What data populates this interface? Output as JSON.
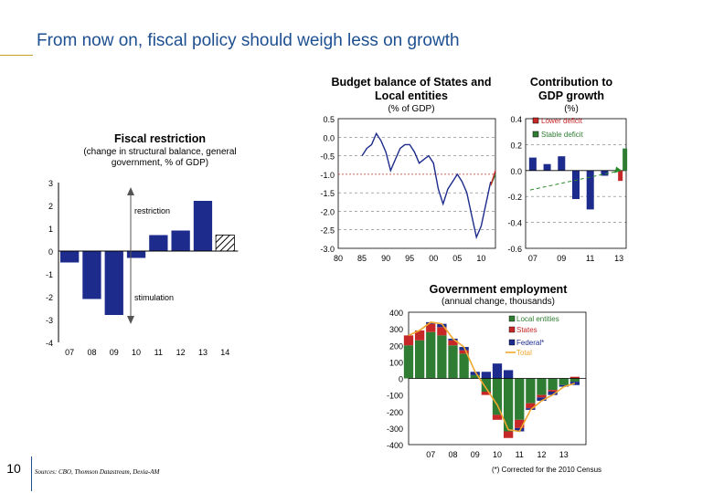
{
  "header": {
    "title": "From now on, fiscal policy should weigh less on growth"
  },
  "footer": {
    "page_number": "10",
    "sources": "Sources: CBO, Thomson Datastream, Dexia-AM",
    "footnote": "(*) Corrected for the 2010 Census"
  },
  "colors": {
    "navy": "#1c2b8c",
    "green": "#2e7d32",
    "red": "#c62828",
    "orange": "#f0a830",
    "dash_red": "#c0392b",
    "dash_green": "#2a8a2a"
  },
  "chart_data": [
    {
      "id": "fiscal",
      "type": "bar",
      "title": "Fiscal restriction",
      "subtitle": "(change in structural balance, general government, % of GDP)",
      "categories": [
        "07",
        "08",
        "09",
        "10",
        "11",
        "12",
        "13",
        "14"
      ],
      "values": [
        -0.5,
        -2.1,
        -2.8,
        -0.3,
        0.7,
        0.9,
        2.2,
        0.7
      ],
      "hatched_index": 7,
      "ylim": [
        -4,
        3
      ],
      "yticks": [
        "3",
        "2",
        "1",
        "0",
        "-1",
        "-2",
        "-3",
        "-4"
      ],
      "annotations": [
        "restriction",
        "stimulation"
      ]
    },
    {
      "id": "budget",
      "type": "line",
      "title": "Budget balance of States and Local entities",
      "subtitle": "(% of GDP)",
      "ylim": [
        -3.0,
        0.5
      ],
      "xlim": [
        1980,
        2013
      ],
      "yticks": [
        "0.5",
        "0.0",
        "-0.5",
        "-1.0",
        "-1.5",
        "-2.0",
        "-2.5",
        "-3.0"
      ],
      "xticks": [
        "80",
        "85",
        "90",
        "95",
        "00",
        "05",
        "10"
      ],
      "x": [
        1985,
        1986,
        1987,
        1988,
        1989,
        1990,
        1991,
        1992,
        1993,
        1994,
        1995,
        1996,
        1997,
        1998,
        1999,
        2000,
        2001,
        2002,
        2003,
        2004,
        2005,
        2006,
        2007,
        2008,
        2009,
        2010,
        2011,
        2012
      ],
      "y": [
        -0.5,
        -0.3,
        -0.2,
        0.1,
        -0.1,
        -0.4,
        -0.9,
        -0.6,
        -0.3,
        -0.2,
        -0.2,
        -0.4,
        -0.7,
        -0.6,
        -0.5,
        -0.7,
        -1.4,
        -1.8,
        -1.4,
        -1.2,
        -1.0,
        -1.2,
        -1.5,
        -2.1,
        -2.7,
        -2.4,
        -1.8,
        -1.2
      ],
      "reference_lines": [
        -1.0
      ],
      "projection": {
        "x": [
          2012,
          2013
        ],
        "stable": [
          -1.3,
          -1.0
        ],
        "lower": [
          -1.3,
          -0.9
        ]
      }
    },
    {
      "id": "contribution",
      "type": "bar",
      "title": "Contribution to GDP growth",
      "subtitle": "(%)",
      "categories": [
        "07",
        "08",
        "09",
        "10",
        "11",
        "12",
        "13"
      ],
      "values": [
        0.1,
        0.05,
        0.11,
        -0.22,
        -0.3,
        -0.04,
        -0.01
      ],
      "projection": {
        "category": "13",
        "lower_deficit": -0.08,
        "stable_deficit": 0.17
      },
      "ylim": [
        -0.6,
        0.4
      ],
      "yticks": [
        "0.4",
        "0.2",
        "0.0",
        "-0.2",
        "-0.4",
        "-0.6"
      ],
      "xticks": [
        "07",
        "09",
        "11",
        "13"
      ],
      "legend": [
        "Lower deficit",
        "Stable deficit"
      ],
      "legend_position": "top-right"
    },
    {
      "id": "employment",
      "type": "area",
      "title": "Government employment",
      "subtitle": "(annual change, thousands)",
      "ylim": [
        -400,
        400
      ],
      "xlim": [
        2006,
        2014
      ],
      "yticks": [
        "400",
        "300",
        "200",
        "100",
        "0",
        "-100",
        "-200",
        "-300",
        "-400"
      ],
      "xticks": [
        "07",
        "08",
        "09",
        "10",
        "11",
        "12",
        "13"
      ],
      "legend": [
        "Local entities",
        "States",
        "Federal*",
        "Total"
      ],
      "legend_position": "top-right",
      "x": [
        2006,
        2006.5,
        2007,
        2007.5,
        2008,
        2008.5,
        2009,
        2009.5,
        2010,
        2010.5,
        2011,
        2011.5,
        2012,
        2012.5,
        2013,
        2013.5
      ],
      "local": [
        200,
        230,
        280,
        260,
        200,
        150,
        20,
        -80,
        -220,
        -320,
        -250,
        -150,
        -100,
        -70,
        -40,
        -20
      ],
      "states": [
        60,
        60,
        50,
        50,
        30,
        20,
        0,
        -20,
        -30,
        -40,
        -50,
        -30,
        -15,
        -10,
        0,
        10
      ],
      "federal": [
        0,
        0,
        10,
        20,
        10,
        20,
        20,
        40,
        90,
        50,
        -20,
        -10,
        -20,
        -20,
        -10,
        -20
      ],
      "total": [
        260,
        290,
        340,
        330,
        240,
        190,
        40,
        -60,
        -160,
        -310,
        -320,
        -190,
        -135,
        -100,
        -50,
        -30
      ]
    }
  ]
}
